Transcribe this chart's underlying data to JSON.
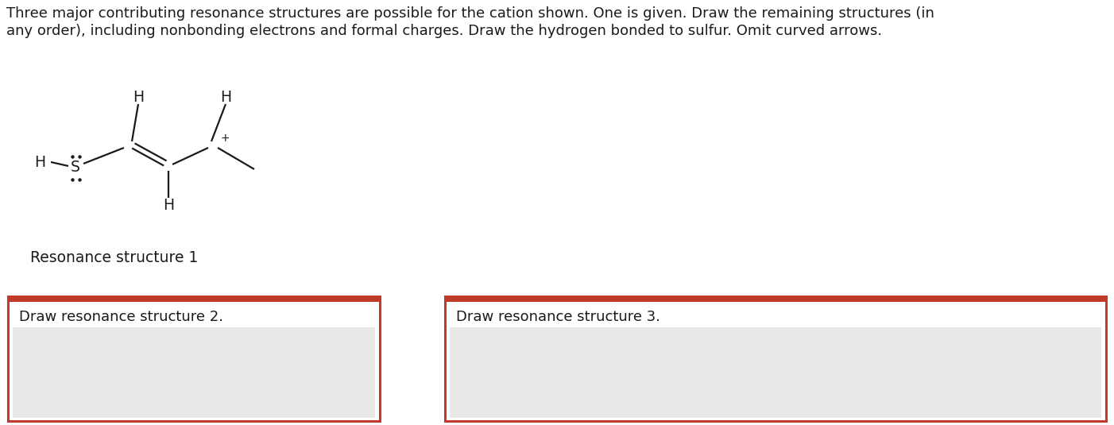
{
  "bg_color": "#ffffff",
  "text_color": "#1a1a1a",
  "line_color": "#1a1a1a",
  "header_text_line1": "Three major contributing resonance structures are possible for the cation shown. One is given. Draw the remaining structures (in",
  "header_text_line2": "any order), including nonbonding electrons and formal charges. Draw the hydrogen bonded to sulfur. Omit curved arrows.",
  "resonance_label": "Resonance structure 1",
  "box1_label": "Draw resonance structure 2.",
  "box2_label": "Draw resonance structure 3.",
  "box_border_color": "#c0392b",
  "box_top_bar_color": "#c0392b",
  "box_inner_bg": "#e8e8e8",
  "font_size_header": 13.0,
  "font_size_label": 13.0,
  "font_size_atom": 13.5,
  "font_size_charge": 10,
  "font_size_res_label": 13.5
}
